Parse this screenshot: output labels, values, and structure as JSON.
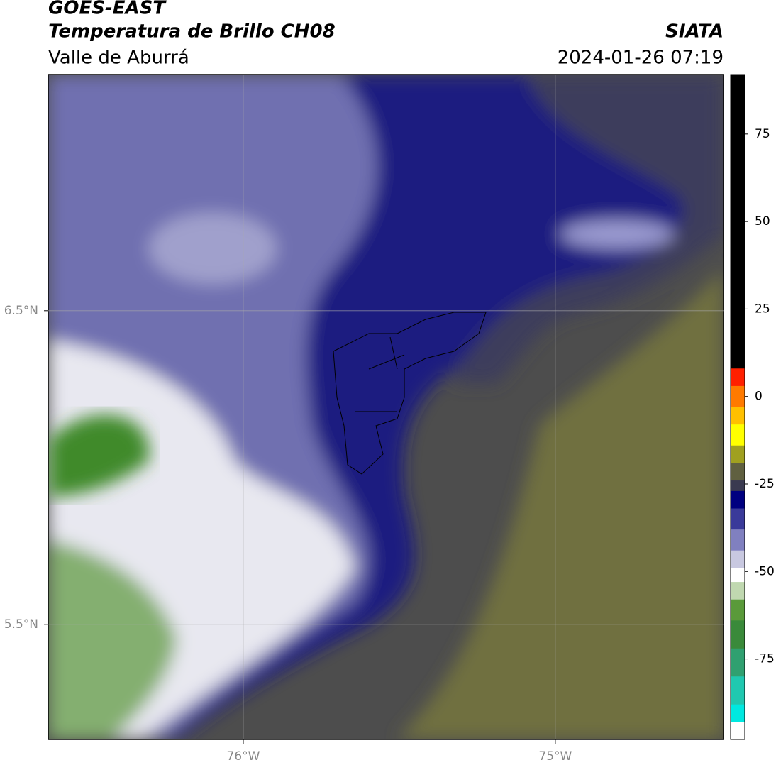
{
  "header": {
    "title": "GOES-EAST",
    "subtitle": "Temperatura de Brillo CH08",
    "region": "Valle de Aburrá",
    "source": "SIATA",
    "datetime": "2024-01-26 07:19"
  },
  "map": {
    "xlim": [
      -76.625,
      -74.461
    ],
    "ylim": [
      5.133,
      7.253
    ],
    "xticks": [
      {
        "value": -76,
        "label": "76°W"
      },
      {
        "value": -75,
        "label": "75°W"
      }
    ],
    "yticks": [
      {
        "value": 6.5,
        "label": "6.5°N"
      },
      {
        "value": 5.5,
        "label": "5.5°N"
      }
    ],
    "grid": true
  },
  "colorbar": {
    "lim": [
      -98,
      92
    ],
    "ticks": [
      75,
      50,
      25,
      0,
      -25,
      -50,
      -75
    ],
    "levels": [
      92,
      8,
      3,
      -3,
      -8,
      -14,
      -19,
      -24,
      -27,
      -32,
      -38,
      -44,
      -49,
      -53,
      -58,
      -64,
      -72,
      -80,
      -88,
      -93,
      -98
    ],
    "colors": [
      "#000000",
      "#ff2000",
      "#ff7a00",
      "#ffc000",
      "#ffff00",
      "#a0a020",
      "#606040",
      "#3a3a50",
      "#000080",
      "#3a3a9a",
      "#8080c0",
      "#c8c8e0",
      "#ffffff",
      "#c0d8b0",
      "#5a9a3a",
      "#3a8a3a",
      "#30a070",
      "#20c8b0",
      "#00e8e0",
      "#ffffff"
    ]
  }
}
